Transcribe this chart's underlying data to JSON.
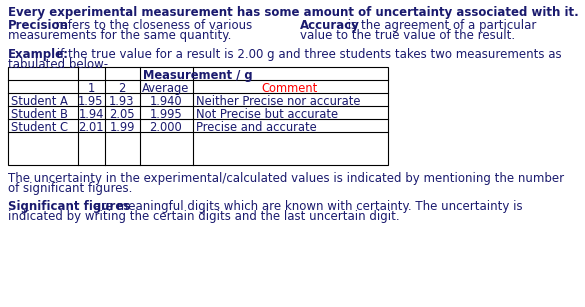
{
  "title_line": "Every experimental measurement has some amount of uncertainty associated with it.",
  "precision_bold": "Precision",
  "precision_rest": " refers to the closeness of various",
  "precision_rest2": "measurements for the same quantity.",
  "accuracy_bold": "Accuracy",
  "accuracy_rest": " is the agreement of a particular",
  "accuracy_rest2": "value to the true value of the result.",
  "example_bold": "Example:",
  "example_rest": " if the true value for a result is 2.00 g and three students takes two measurements as",
  "example_rest2": "tabulated below-",
  "table_header": "Measurement / g",
  "col_headers": [
    "",
    "1",
    "2",
    "Average",
    "Comment"
  ],
  "rows": [
    [
      "Student A",
      "1.95",
      "1.93",
      "1.940",
      "Neither Precise nor accurate"
    ],
    [
      "Student B",
      "1.94",
      "2.05",
      "1.995",
      "Not Precise but accurate"
    ],
    [
      "Student C",
      "2.01",
      "1.99",
      "2.000",
      "Precise and accurate"
    ]
  ],
  "uncertainty_text1": "The uncertainty in the experimental/calculated values is indicated by mentioning the number",
  "uncertainty_text2": "of significant figures.",
  "sig_fig_bold": "Significant figures",
  "sig_fig_rest": " are meaningful digits which are known with certainty. The uncertainty is",
  "sig_fig_rest2": "indicated by writing the certain digits and the last uncertain digit.",
  "comment_color": "#ff0000",
  "text_color": "#1a1a6e",
  "bg_color": "#ffffff",
  "font_size": 8.5,
  "table_font_size": 8.3
}
